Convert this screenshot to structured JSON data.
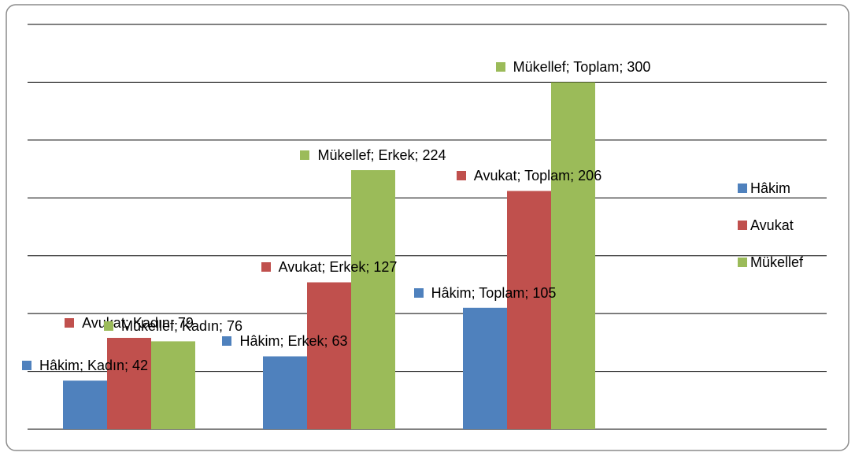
{
  "chart_data": {
    "type": "bar",
    "series": [
      {
        "name": "Hâkim",
        "color": "#4f81bd",
        "values": [
          42,
          63,
          105
        ],
        "value_labels": [
          "Hâkim; Kadın; 42",
          "Hâkim; Erkek; 63",
          "Hâkim; Toplam; 105"
        ]
      },
      {
        "name": "Avukat",
        "color": "#c0504d",
        "values": [
          79,
          127,
          206
        ],
        "value_labels": [
          "Avukat; Kadın; 79",
          "Avukat; Erkek; 127",
          "Avukat; Toplam; 206"
        ]
      },
      {
        "name": "Mükellef",
        "color": "#9bbb59",
        "values": [
          76,
          224,
          300
        ],
        "value_labels": [
          "Mükellef; Kadın; 76",
          "Mükellef; Erkek; 224",
          "Mükellef; Toplam; 300"
        ]
      }
    ],
    "ylim": [
      0,
      350
    ],
    "yticks": [
      0,
      50,
      100,
      150,
      200,
      250,
      300,
      350
    ],
    "grid": true,
    "legend": "right"
  }
}
